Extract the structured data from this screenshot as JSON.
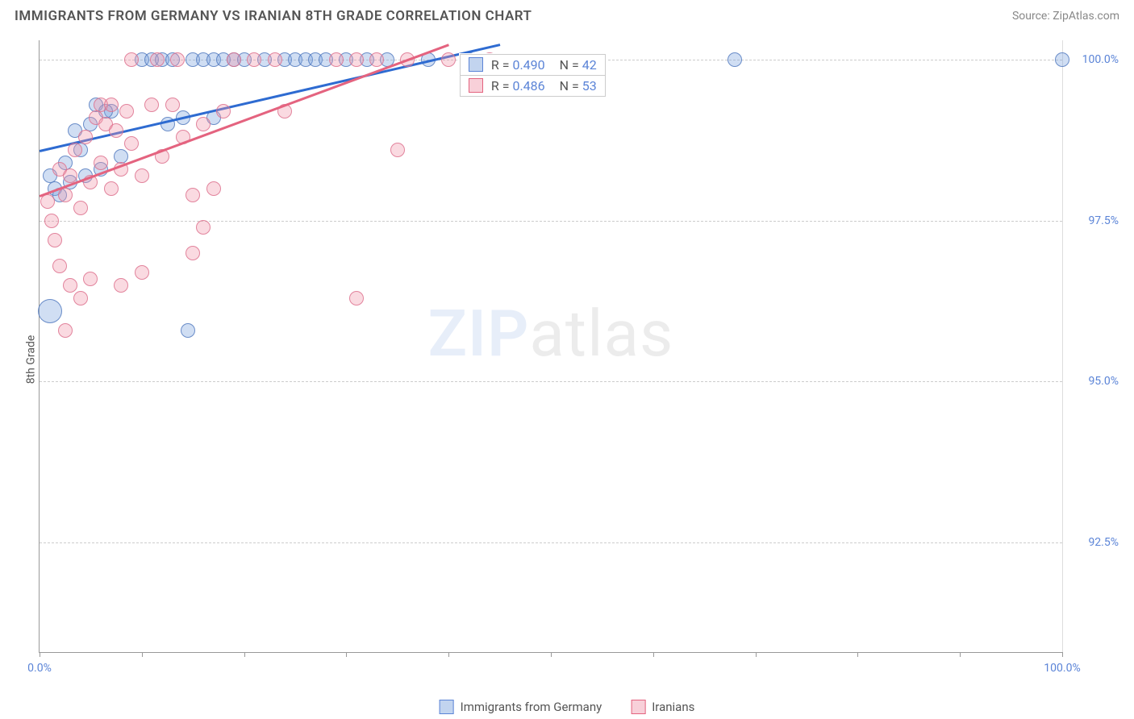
{
  "header": {
    "title": "IMMIGRANTS FROM GERMANY VS IRANIAN 8TH GRADE CORRELATION CHART",
    "source_prefix": "Source: ",
    "source": "ZipAtlas.com"
  },
  "chart": {
    "type": "scatter",
    "ylabel": "8th Grade",
    "xlim": [
      0,
      100
    ],
    "ylim": [
      90.8,
      100.3
    ],
    "x_ticks": [
      0,
      10,
      20,
      30,
      40,
      50,
      60,
      70,
      80,
      90,
      100
    ],
    "x_tick_labels": {
      "0": "0.0%",
      "100": "100.0%"
    },
    "y_gridlines": [
      92.5,
      95.0,
      97.5,
      100.0
    ],
    "y_tick_labels": {
      "92.5": "92.5%",
      "95.0": "95.0%",
      "97.5": "97.5%",
      "100.0": "100.0%"
    },
    "background_color": "#ffffff",
    "grid_color": "#cccccc",
    "point_radius": 9,
    "big_point_radius": 15,
    "series": [
      {
        "key": "a",
        "label": "Immigrants from Germany",
        "fill": "rgba(120,160,220,0.35)",
        "stroke": "#5b84d7",
        "trend_color": "#2e6bd1",
        "trend": {
          "x1": 0,
          "y1": 98.6,
          "x2": 45,
          "y2": 100.25
        },
        "stats": {
          "R": "0.490",
          "N": "42"
        },
        "points": [
          [
            1.0,
            98.2
          ],
          [
            1.5,
            98.0
          ],
          [
            2.0,
            97.9
          ],
          [
            2.5,
            98.4
          ],
          [
            3.0,
            98.1
          ],
          [
            4.0,
            98.6
          ],
          [
            5.0,
            99.0
          ],
          [
            6.0,
            98.3
          ],
          [
            7.0,
            99.2
          ],
          [
            8.0,
            98.5
          ],
          [
            3.5,
            98.9
          ],
          [
            4.5,
            98.2
          ],
          [
            5.5,
            99.3
          ],
          [
            10.0,
            100.0
          ],
          [
            11.0,
            100.0
          ],
          [
            12.0,
            100.0
          ],
          [
            13.0,
            100.0
          ],
          [
            14.0,
            99.1
          ],
          [
            15.0,
            100.0
          ],
          [
            16.0,
            100.0
          ],
          [
            17.0,
            100.0
          ],
          [
            18.0,
            100.0
          ],
          [
            19.0,
            100.0
          ],
          [
            20.0,
            100.0
          ],
          [
            22.0,
            100.0
          ],
          [
            24.0,
            100.0
          ],
          [
            25.0,
            100.0
          ],
          [
            26.0,
            100.0
          ],
          [
            27.0,
            100.0
          ],
          [
            28.0,
            100.0
          ],
          [
            30.0,
            100.0
          ],
          [
            32.0,
            100.0
          ],
          [
            34.0,
            100.0
          ],
          [
            38.0,
            100.0
          ],
          [
            42.0,
            100.0
          ],
          [
            68.0,
            100.0
          ],
          [
            100.0,
            100.0
          ],
          [
            14.5,
            95.8
          ],
          [
            17.0,
            99.1
          ],
          [
            12.5,
            99.0
          ],
          [
            6.5,
            99.2
          ]
        ],
        "big_points": [
          [
            1.0,
            96.1
          ]
        ]
      },
      {
        "key": "b",
        "label": "Iranians",
        "fill": "rgba(240,150,170,0.35)",
        "stroke": "#e4637f",
        "trend_color": "#e4637f",
        "trend": {
          "x1": 0,
          "y1": 97.9,
          "x2": 40,
          "y2": 100.25
        },
        "stats": {
          "R": "0.486",
          "N": "53"
        },
        "points": [
          [
            0.8,
            97.8
          ],
          [
            1.2,
            97.5
          ],
          [
            1.5,
            97.2
          ],
          [
            2.0,
            98.3
          ],
          [
            2.5,
            97.9
          ],
          [
            3.0,
            98.2
          ],
          [
            3.5,
            98.6
          ],
          [
            4.0,
            97.7
          ],
          [
            4.5,
            98.8
          ],
          [
            5.0,
            98.1
          ],
          [
            5.5,
            99.1
          ],
          [
            6.0,
            98.4
          ],
          [
            6.5,
            99.0
          ],
          [
            7.0,
            98.0
          ],
          [
            7.5,
            98.9
          ],
          [
            8.0,
            98.3
          ],
          [
            8.5,
            99.2
          ],
          [
            9.0,
            98.7
          ],
          [
            10.0,
            98.2
          ],
          [
            11.0,
            99.3
          ],
          [
            12.0,
            98.5
          ],
          [
            13.0,
            99.3
          ],
          [
            14.0,
            98.8
          ],
          [
            15.0,
            97.9
          ],
          [
            16.0,
            99.0
          ],
          [
            17.0,
            98.0
          ],
          [
            18.0,
            99.2
          ],
          [
            2.0,
            96.8
          ],
          [
            3.0,
            96.5
          ],
          [
            4.0,
            96.3
          ],
          [
            5.0,
            96.6
          ],
          [
            8.0,
            96.5
          ],
          [
            10.0,
            96.7
          ],
          [
            16.0,
            97.4
          ],
          [
            15.0,
            97.0
          ],
          [
            2.5,
            95.8
          ],
          [
            31.0,
            96.3
          ],
          [
            35.0,
            98.6
          ],
          [
            9.0,
            100.0
          ],
          [
            11.5,
            100.0
          ],
          [
            13.5,
            100.0
          ],
          [
            19.0,
            100.0
          ],
          [
            21.0,
            100.0
          ],
          [
            23.0,
            100.0
          ],
          [
            29.0,
            100.0
          ],
          [
            31.0,
            100.0
          ],
          [
            33.0,
            100.0
          ],
          [
            36.0,
            100.0
          ],
          [
            40.0,
            100.0
          ],
          [
            44.0,
            100.0
          ],
          [
            24.0,
            99.2
          ],
          [
            6.0,
            99.3
          ],
          [
            7.0,
            99.3
          ]
        ],
        "big_points": []
      }
    ],
    "stats_box": {
      "left_pct": 41.0,
      "top_y": 100.1
    },
    "watermark": {
      "part1": "ZIP",
      "part2": "atlas"
    }
  },
  "legend": {
    "items": [
      {
        "series": "a",
        "label": "Immigrants from Germany"
      },
      {
        "series": "b",
        "label": "Iranians"
      }
    ]
  }
}
